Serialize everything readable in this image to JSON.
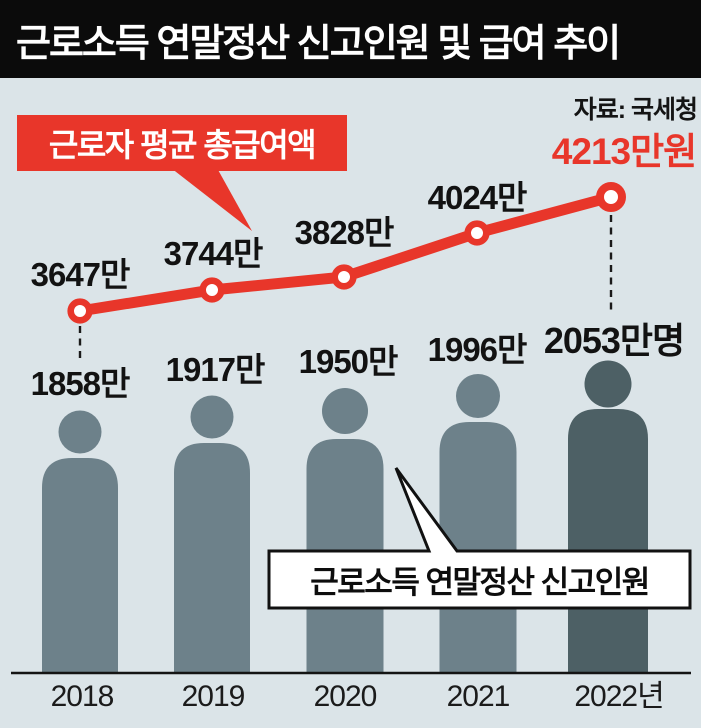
{
  "title": "근로소득 연말정산 신고인원 및 급여 추이",
  "source": "자료: 국세청",
  "salary_callout_label": "근로자 평균 총급여액",
  "filers_callout_label": "근로소득 연말정산 신고인원",
  "colors": {
    "accent_red": "#e8362a",
    "figure": "#6d818a",
    "figure_last": "#4d6065",
    "background": "#dbe4e8",
    "title_bg": "#0b0b0b",
    "axis": "#141414",
    "highlight_text_red": "#e8362a"
  },
  "chart_data": {
    "type": "line",
    "subtype": "line-over-pictogram-bars",
    "categories": [
      "2018",
      "2019",
      "2020",
      "2021",
      "2022년"
    ],
    "series": [
      {
        "name": "근로자 평균 총급여액",
        "unit": "만원",
        "values": [
          3647,
          3744,
          3828,
          4024,
          4213
        ],
        "labels": [
          "3647만",
          "3744만",
          "3828만",
          "4024만",
          "4213만원"
        ],
        "style": "red line with white circle markers, last point emphasized"
      },
      {
        "name": "근로소득 연말정산 신고인원",
        "unit": "만명",
        "values": [
          1858,
          1917,
          1950,
          1996,
          2053
        ],
        "labels": [
          "1858만",
          "1917만",
          "1950만",
          "1996만",
          "2053만명"
        ],
        "style": "person pictogram bars, last one darker"
      }
    ],
    "legend_position": "callout boxes",
    "grid": false,
    "leader_lines": [
      "first point to 1858만 figure",
      "last point to 2053만명 figure"
    ]
  }
}
